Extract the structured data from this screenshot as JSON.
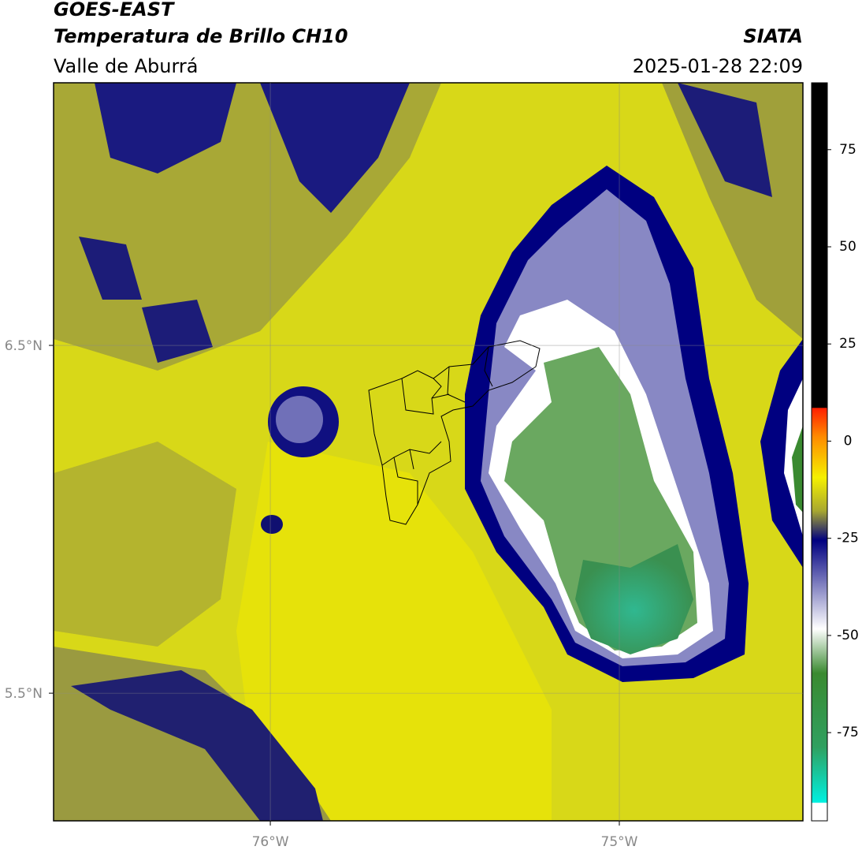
{
  "header": {
    "title": "GOES-EAST",
    "subtitle": "Temperatura de Brillo CH10",
    "region": "Valle de Aburrá",
    "source": "SIATA",
    "datetime": "2025-01-28 22:09"
  },
  "map": {
    "xlim": [
      -76.621,
      -74.474
    ],
    "ylim": [
      5.133,
      7.255
    ],
    "xticks": [
      {
        "value": -76,
        "label": "76°W"
      },
      {
        "value": -75,
        "label": "75°W"
      }
    ],
    "yticks": [
      {
        "value": 6.5,
        "label": "6.5°N"
      },
      {
        "value": 5.5,
        "label": "5.5°N"
      }
    ],
    "grid": true
  },
  "colorbar": {
    "ylim": [
      -97.7,
      92.2
    ],
    "yticks": [
      75,
      50,
      25,
      0,
      -25,
      -50,
      -75
    ]
  }
}
